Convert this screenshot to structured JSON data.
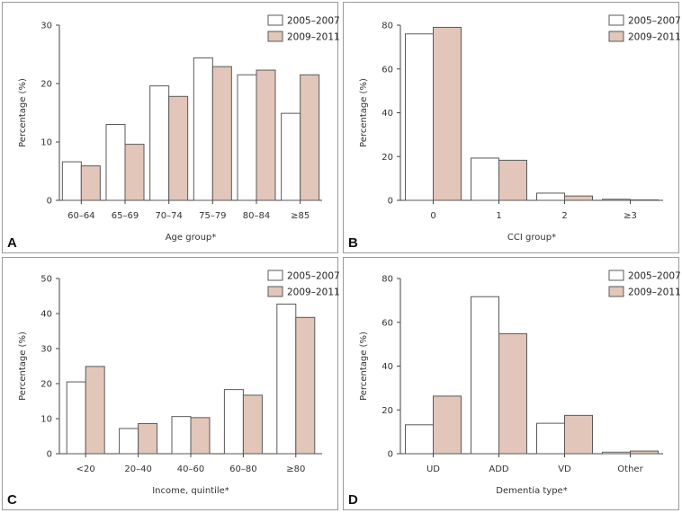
{
  "colors": {
    "series1": "#ffffff",
    "series2": "#e2c6b9",
    "stroke": "#5a5a5a"
  },
  "chart_data": [
    {
      "panel": "A",
      "type": "bar",
      "xlabel": "Age group*",
      "ylabel": "Percentage (%)",
      "ylim": [
        0,
        30
      ],
      "yticks": [
        0,
        10,
        20,
        30
      ],
      "categories": [
        "60–64",
        "65–69",
        "70–74",
        "75–79",
        "80–84",
        "≥85"
      ],
      "series": [
        {
          "name": "2005–2007",
          "values": [
            6.6,
            13.0,
            19.6,
            24.4,
            21.5,
            14.9
          ]
        },
        {
          "name": "2009–2011",
          "values": [
            5.9,
            9.6,
            17.8,
            22.9,
            22.3,
            21.5
          ]
        }
      ]
    },
    {
      "panel": "B",
      "type": "bar",
      "xlabel": "CCI group*",
      "ylabel": "Percentage (%)",
      "ylim": [
        0,
        80
      ],
      "yticks": [
        0,
        20,
        40,
        60,
        80
      ],
      "categories": [
        "0",
        "1",
        "2",
        "≥3"
      ],
      "series": [
        {
          "name": "2005–2007",
          "values": [
            76.0,
            19.3,
            3.3,
            0.5
          ]
        },
        {
          "name": "2009–2011",
          "values": [
            79.0,
            18.3,
            2.0,
            0.2
          ]
        }
      ]
    },
    {
      "panel": "C",
      "type": "bar",
      "xlabel": "Income, quintile*",
      "ylabel": "Percentage (%)",
      "ylim": [
        0,
        50
      ],
      "yticks": [
        0,
        10,
        20,
        30,
        40,
        50
      ],
      "categories": [
        "<20",
        "20–40",
        "40–60",
        "60–80",
        "≥80"
      ],
      "series": [
        {
          "name": "2005–2007",
          "values": [
            20.5,
            7.2,
            10.6,
            18.3,
            42.7
          ]
        },
        {
          "name": "2009–2011",
          "values": [
            24.9,
            8.6,
            10.3,
            16.7,
            38.9
          ]
        }
      ]
    },
    {
      "panel": "D",
      "type": "bar",
      "xlabel": "Dementia type*",
      "ylabel": "Percentage (%)",
      "ylim": [
        0,
        80
      ],
      "yticks": [
        0,
        20,
        40,
        60,
        80
      ],
      "categories": [
        "UD",
        "ADD",
        "VD",
        "Other"
      ],
      "series": [
        {
          "name": "2005–2007",
          "values": [
            13.2,
            71.7,
            13.9,
            0.7
          ]
        },
        {
          "name": "2009–2011",
          "values": [
            26.3,
            54.8,
            17.5,
            1.2
          ]
        }
      ]
    }
  ]
}
